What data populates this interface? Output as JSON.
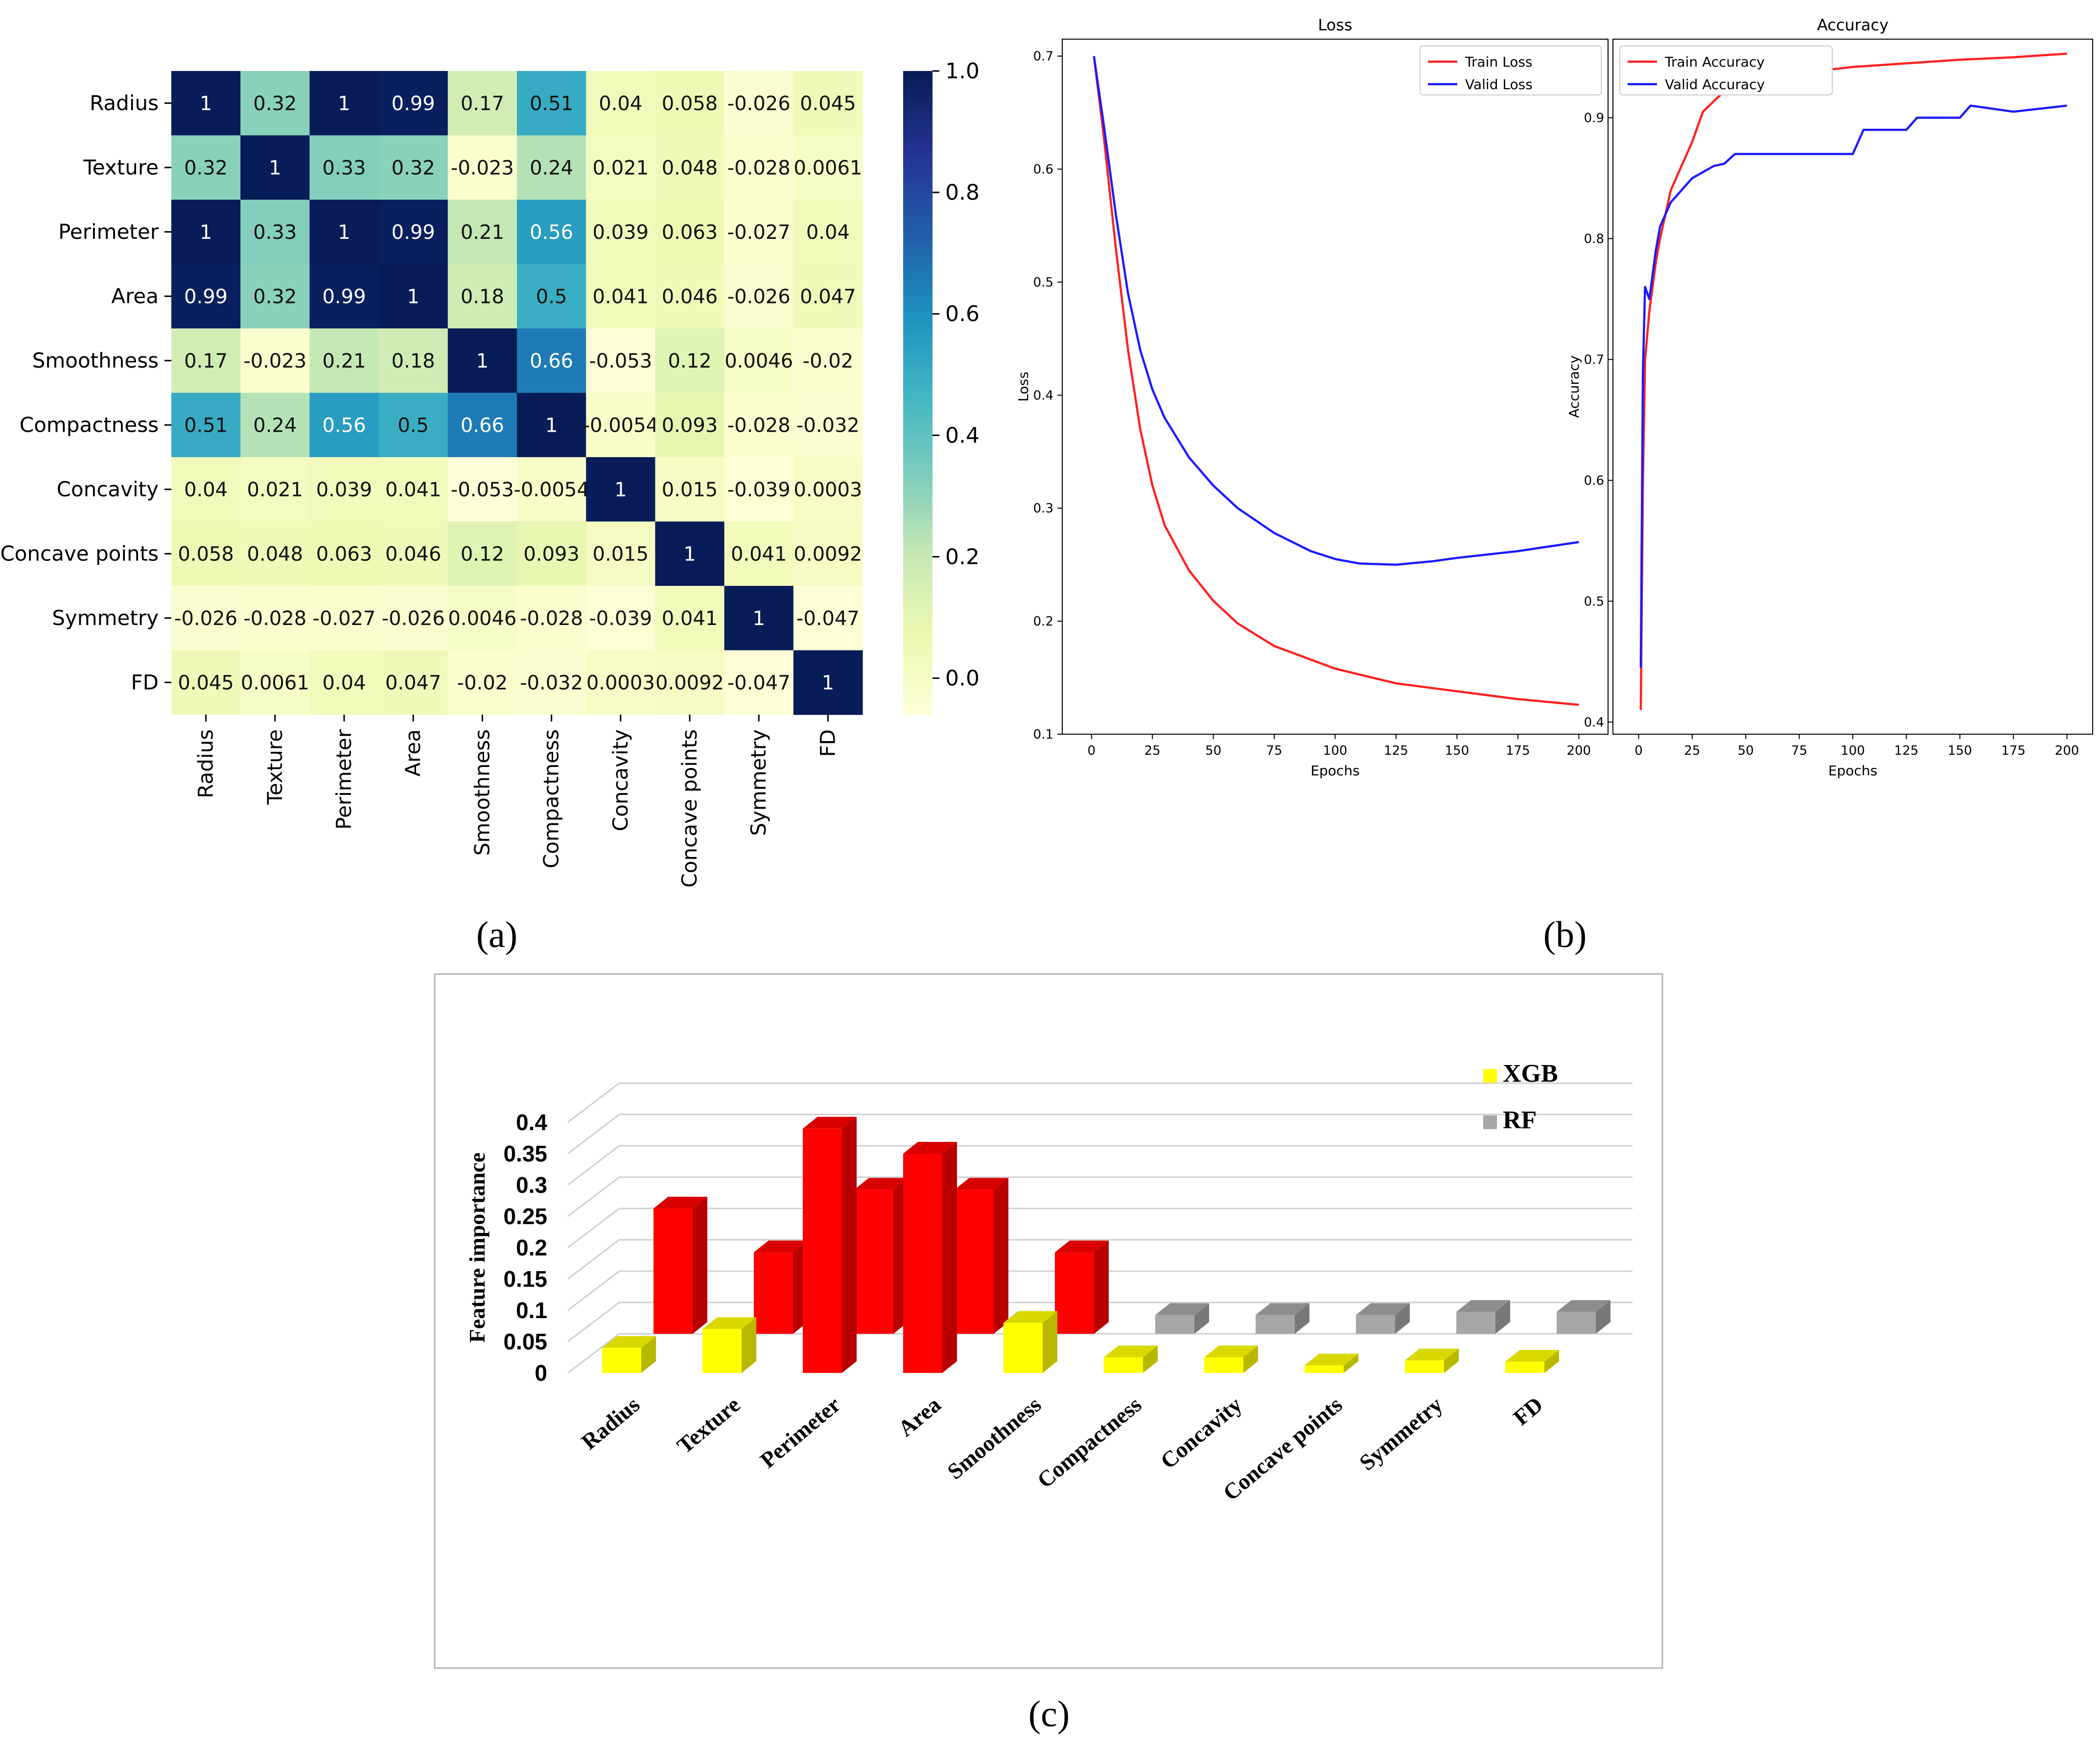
{
  "panel_labels": {
    "a": "(a)",
    "b": "(b)",
    "c": "(c)"
  },
  "colors": {
    "train": "#ff2020",
    "valid": "#1a1aff",
    "xgb": "#ffff00",
    "rf": "#a6a6a6",
    "red_bar": "#ff0000",
    "cmap": [
      "#ffffd9",
      "#edf8b1",
      "#c7e9b4",
      "#7fcdbb",
      "#41b6c4",
      "#1d91c0",
      "#225ea8",
      "#253494",
      "#081d58"
    ]
  },
  "chart_data": [
    {
      "type": "heatmap",
      "title": "",
      "labels": [
        "Radius",
        "Texture",
        "Perimeter",
        "Area",
        "Smoothness",
        "Compactness",
        "Concavity",
        "Concave points",
        "Symmetry",
        "FD"
      ],
      "matrix": [
        [
          1,
          0.32,
          1,
          0.99,
          0.17,
          0.51,
          0.04,
          0.058,
          -0.026,
          0.045
        ],
        [
          0.32,
          1,
          0.33,
          0.32,
          -0.023,
          0.24,
          0.021,
          0.048,
          -0.028,
          0.0061
        ],
        [
          1,
          0.33,
          1,
          0.99,
          0.21,
          0.56,
          0.039,
          0.063,
          -0.027,
          0.04
        ],
        [
          0.99,
          0.32,
          0.99,
          1,
          0.18,
          0.5,
          0.041,
          0.046,
          -0.026,
          0.047
        ],
        [
          0.17,
          -0.023,
          0.21,
          0.18,
          1,
          0.66,
          -0.053,
          0.12,
          0.0046,
          -0.02
        ],
        [
          0.51,
          0.24,
          0.56,
          0.5,
          0.66,
          1,
          -0.0054,
          0.093,
          -0.028,
          -0.032
        ],
        [
          0.04,
          0.021,
          0.039,
          0.041,
          -0.053,
          -0.0054,
          1,
          0.015,
          -0.039,
          0.0003
        ],
        [
          0.058,
          0.048,
          0.063,
          0.046,
          0.12,
          0.093,
          0.015,
          1,
          0.041,
          0.0092
        ],
        [
          -0.026,
          -0.028,
          -0.027,
          -0.026,
          0.0046,
          -0.028,
          -0.039,
          0.041,
          1,
          -0.047
        ],
        [
          0.045,
          0.0061,
          0.04,
          0.047,
          -0.02,
          -0.032,
          0.0003,
          0.0092,
          -0.047,
          1
        ]
      ],
      "cell_text": [
        [
          "1",
          "0.32",
          "1",
          "0.99",
          "0.17",
          "0.51",
          "0.04",
          "0.058",
          "-0.026",
          "0.045"
        ],
        [
          "0.32",
          "1",
          "0.33",
          "0.32",
          "-0.023",
          "0.24",
          "0.021",
          "0.048",
          "-0.028",
          "0.0061"
        ],
        [
          "1",
          "0.33",
          "1",
          "0.99",
          "0.21",
          "0.56",
          "0.039",
          "0.063",
          "-0.027",
          "0.04"
        ],
        [
          "0.99",
          "0.32",
          "0.99",
          "1",
          "0.18",
          "0.5",
          "0.041",
          "0.046",
          "-0.026",
          "0.047"
        ],
        [
          "0.17",
          "-0.023",
          "0.21",
          "0.18",
          "1",
          "0.66",
          "-0.053",
          "0.12",
          "0.0046",
          "-0.02"
        ],
        [
          "0.51",
          "0.24",
          "0.56",
          "0.5",
          "0.66",
          "1",
          "-0.0054",
          "0.093",
          "-0.028",
          "-0.032"
        ],
        [
          "0.04",
          "0.021",
          "0.039",
          "0.041",
          "-0.053",
          "-0.0054",
          "1",
          "0.015",
          "-0.039",
          "0.0003"
        ],
        [
          "0.058",
          "0.048",
          "0.063",
          "0.046",
          "0.12",
          "0.093",
          "0.015",
          "1",
          "0.041",
          "0.0092"
        ],
        [
          "-0.026",
          "-0.028",
          "-0.027",
          "-0.026",
          "0.0046",
          "-0.028",
          "-0.039",
          "0.041",
          "1",
          "-0.047"
        ],
        [
          "0.045",
          "0.0061",
          "0.04",
          "0.047",
          "-0.02",
          "-0.032",
          "0.0003",
          "0.0092",
          "-0.047",
          "1"
        ]
      ],
      "colorbar": {
        "range": [
          -0.06,
          1.0
        ],
        "ticks": [
          "1.0",
          "0.8",
          "0.6",
          "0.4",
          "0.2",
          "0.0"
        ],
        "tick_values": [
          1.0,
          0.8,
          0.6,
          0.4,
          0.2,
          0.0
        ]
      }
    },
    {
      "type": "line",
      "title": "Loss",
      "xlabel": "Epochs",
      "ylabel": "Loss",
      "xlim": [
        -12,
        212
      ],
      "ylim": [
        0.1,
        0.715
      ],
      "xticks": [
        0,
        25,
        50,
        75,
        100,
        125,
        150,
        175,
        200
      ],
      "yticks": [
        0.1,
        0.2,
        0.3,
        0.4,
        0.5,
        0.6,
        0.7
      ],
      "ytick_labels": [
        "0.1",
        "0.2",
        "0.3",
        "0.4",
        "0.5",
        "0.6",
        "0.7"
      ],
      "legend": "top-right",
      "series": [
        {
          "name": "Train Loss",
          "x": [
            1,
            5,
            10,
            15,
            20,
            25,
            30,
            40,
            50,
            60,
            75,
            100,
            125,
            150,
            175,
            200
          ],
          "values": [
            0.7,
            0.63,
            0.53,
            0.44,
            0.37,
            0.32,
            0.285,
            0.245,
            0.218,
            0.198,
            0.178,
            0.158,
            0.145,
            0.138,
            0.131,
            0.126
          ]
        },
        {
          "name": "Valid Loss",
          "x": [
            1,
            5,
            10,
            15,
            20,
            25,
            30,
            40,
            50,
            60,
            75,
            90,
            100,
            110,
            125,
            140,
            150,
            175,
            200
          ],
          "values": [
            0.7,
            0.64,
            0.56,
            0.49,
            0.44,
            0.405,
            0.38,
            0.345,
            0.32,
            0.3,
            0.278,
            0.262,
            0.255,
            0.251,
            0.25,
            0.253,
            0.256,
            0.262,
            0.27
          ]
        }
      ]
    },
    {
      "type": "line",
      "title": "Accuracy",
      "xlabel": "Epochs",
      "ylabel": "Accuracy",
      "xlim": [
        -12,
        212
      ],
      "ylim": [
        0.39,
        0.965
      ],
      "xticks": [
        0,
        25,
        50,
        75,
        100,
        125,
        150,
        175,
        200
      ],
      "yticks": [
        0.4,
        0.5,
        0.6,
        0.7,
        0.8,
        0.9
      ],
      "ytick_labels": [
        "0.4",
        "0.5",
        "0.6",
        "0.7",
        "0.8",
        "0.9"
      ],
      "legend": "top-left",
      "series": [
        {
          "name": "Train Accuracy",
          "x": [
            1,
            2,
            3,
            5,
            8,
            10,
            15,
            20,
            25,
            30,
            40,
            50,
            75,
            100,
            125,
            150,
            175,
            200
          ],
          "values": [
            0.41,
            0.6,
            0.7,
            0.74,
            0.78,
            0.8,
            0.84,
            0.86,
            0.88,
            0.905,
            0.922,
            0.93,
            0.937,
            0.942,
            0.945,
            0.948,
            0.95,
            0.953
          ]
        },
        {
          "name": "Valid Accuracy",
          "x": [
            1,
            2,
            3,
            5,
            8,
            10,
            15,
            20,
            25,
            30,
            35,
            40,
            45,
            50,
            75,
            100,
            105,
            125,
            130,
            150,
            155,
            175,
            200
          ],
          "values": [
            0.445,
            0.69,
            0.76,
            0.75,
            0.79,
            0.81,
            0.83,
            0.84,
            0.85,
            0.855,
            0.86,
            0.862,
            0.87,
            0.87,
            0.87,
            0.87,
            0.89,
            0.89,
            0.9,
            0.9,
            0.91,
            0.905,
            0.91
          ]
        }
      ]
    },
    {
      "type": "bar",
      "title": "",
      "ylabel": "Feature importance",
      "ylim": [
        0,
        0.4
      ],
      "yticks": [
        "0.4",
        "0.35",
        "0.3",
        "0.25",
        "0.2",
        "0.15",
        "0.1",
        "0.05",
        "0"
      ],
      "ytick_values": [
        0.4,
        0.35,
        0.3,
        0.25,
        0.2,
        0.15,
        0.1,
        0.05,
        0
      ],
      "categories": [
        "Radius",
        "Texture",
        "Perimeter",
        "Area",
        "Smoothness",
        "Compactness",
        "Concavity",
        "Concave points",
        "Symmetry",
        "FD"
      ],
      "legend": "top-right",
      "series": [
        {
          "name": "XGB",
          "values": [
            0.04,
            0.07,
            0.39,
            0.35,
            0.08,
            0.025,
            0.025,
            0.012,
            0.02,
            0.018
          ]
        },
        {
          "name": "RF",
          "values": [
            0.2,
            0.13,
            0.23,
            0.23,
            0.13,
            0.03,
            0.03,
            0.03,
            0.035,
            0.035
          ]
        }
      ],
      "highlighted": [
        true,
        true,
        true,
        true,
        true,
        false,
        false,
        false,
        false,
        false
      ]
    }
  ]
}
